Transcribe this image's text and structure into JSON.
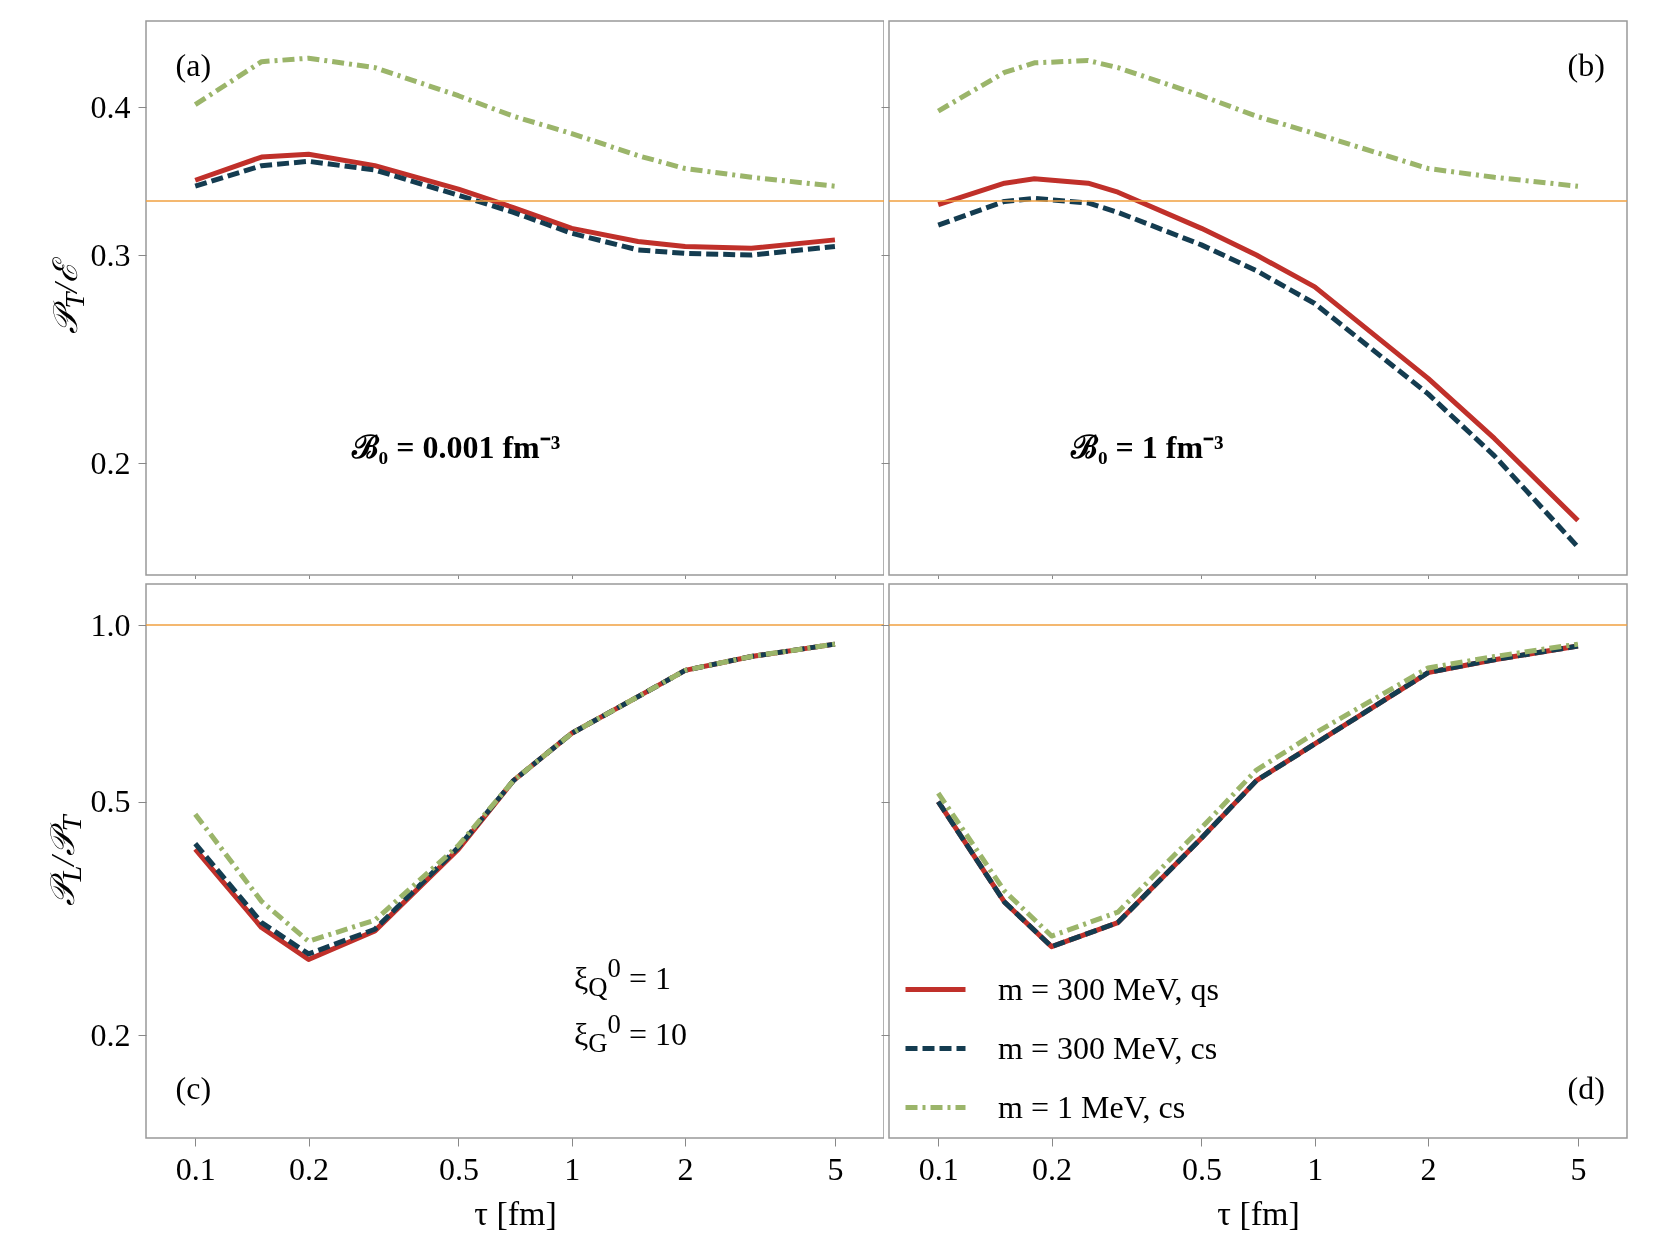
{
  "chart_data": [
    {
      "type": "line",
      "ylabel": "𝒫$_{T}$/ℰ",
      "annotations": [
        "(a)",
        "ℬ₀ = 0.001 fm⁻³"
      ],
      "log": "xy",
      "xlim": [
        0.074,
        6.75
      ],
      "xticks": [
        0.1,
        0.2,
        0.5,
        1,
        2,
        5
      ],
      "ylim": [
        0.161,
        0.473
      ],
      "yticks": [
        0.2,
        0.3,
        0.4
      ],
      "tick_labels": "y",
      "grid": false,
      "legend": false,
      "marker": "none",
      "ref_lines": [
        {
          "axis": "y",
          "value": 0.3333,
          "color": "#f0a040"
        }
      ],
      "x": [
        0.1,
        0.15,
        0.2,
        0.3,
        0.5,
        0.7,
        1,
        1.5,
        2,
        3,
        5
      ],
      "series": [
        {
          "color": "#c0302a",
          "line_style": "solid",
          "values": [
            0.347,
            0.363,
            0.365,
            0.357,
            0.341,
            0.329,
            0.316,
            0.308,
            0.305,
            0.304,
            0.309
          ]
        },
        {
          "color": "#143c50",
          "line_style": "dashed",
          "values": [
            0.343,
            0.357,
            0.36,
            0.354,
            0.337,
            0.326,
            0.313,
            0.303,
            0.301,
            0.3,
            0.305
          ]
        },
        {
          "color": "#9bb56a",
          "line_style": "dashdot",
          "values": [
            0.402,
            0.437,
            0.44,
            0.432,
            0.409,
            0.393,
            0.38,
            0.364,
            0.355,
            0.349,
            0.343
          ]
        }
      ]
    },
    {
      "type": "line",
      "annotations": [
        "(b)",
        "ℬ₀ = 1 fm⁻³"
      ],
      "log": "xy",
      "xlim": [
        0.074,
        6.75
      ],
      "xticks": [
        0.1,
        0.2,
        0.5,
        1,
        2,
        5
      ],
      "ylim": [
        0.161,
        0.473
      ],
      "yticks": [
        0.2,
        0.3,
        0.4
      ],
      "tick_labels": false,
      "grid": false,
      "legend": false,
      "marker": "none",
      "ref_lines": [
        {
          "axis": "y",
          "value": 0.3333,
          "color": "#f0a040"
        }
      ],
      "x": [
        0.1,
        0.15,
        0.18,
        0.25,
        0.3,
        0.5,
        0.7,
        1,
        2,
        3,
        5
      ],
      "series": [
        {
          "color": "#c0302a",
          "line_style": "solid",
          "values": [
            0.331,
            0.345,
            0.348,
            0.345,
            0.339,
            0.316,
            0.3,
            0.282,
            0.236,
            0.21,
            0.179
          ]
        },
        {
          "color": "#143c50",
          "line_style": "dashed",
          "values": [
            0.318,
            0.333,
            0.335,
            0.332,
            0.326,
            0.306,
            0.291,
            0.273,
            0.229,
            0.203,
            0.17
          ]
        },
        {
          "color": "#9bb56a",
          "line_style": "dashdot",
          "values": [
            0.397,
            0.428,
            0.436,
            0.438,
            0.432,
            0.409,
            0.393,
            0.38,
            0.355,
            0.349,
            0.343
          ]
        }
      ]
    },
    {
      "type": "line",
      "xlabel": "τ [fm]",
      "ylabel": "𝒫$_{L}$/𝒫$_{T}$",
      "annotations": [
        "ξ$_{Q}$$^{0}$ = 1",
        "ξ$_{G}$$^{0}$ = 10",
        "(c)"
      ],
      "log": "xy",
      "xlim": [
        0.074,
        6.75
      ],
      "xticks": [
        0.1,
        0.2,
        0.5,
        1,
        2,
        5
      ],
      "ylim": [
        0.1335,
        1.175
      ],
      "yticks": [
        0.2,
        0.5,
        {
          "value": 1,
          "label": "1.0"
        }
      ],
      "grid": false,
      "legend": false,
      "marker": "none",
      "ref_lines": [
        {
          "axis": "y",
          "value": 1,
          "color": "#f0a040"
        }
      ],
      "x": [
        0.1,
        0.15,
        0.2,
        0.3,
        0.5,
        0.7,
        1,
        1.5,
        2,
        3,
        5
      ],
      "series": [
        {
          "color": "#c0302a",
          "line_style": "solid",
          "values": [
            0.415,
            0.305,
            0.269,
            0.301,
            0.415,
            0.543,
            0.654,
            0.755,
            0.837,
            0.884,
            0.928
          ]
        },
        {
          "color": "#143c50",
          "line_style": "dashed",
          "values": [
            0.424,
            0.311,
            0.275,
            0.303,
            0.418,
            0.543,
            0.654,
            0.755,
            0.837,
            0.884,
            0.928
          ]
        },
        {
          "color": "#9bb56a",
          "line_style": "dashdot",
          "values": [
            0.476,
            0.338,
            0.289,
            0.314,
            0.421,
            0.543,
            0.654,
            0.755,
            0.837,
            0.884,
            0.928
          ]
        }
      ]
    },
    {
      "type": "line",
      "xlabel": "τ [fm]",
      "annotations": [
        "(d)"
      ],
      "log": "xy",
      "xlim": [
        0.074,
        6.75
      ],
      "xticks": [
        0.1,
        0.2,
        0.5,
        1,
        2,
        5
      ],
      "ylim": [
        0.1335,
        1.175
      ],
      "yticks": [
        0.2,
        0.5,
        1
      ],
      "tick_labels": "x",
      "grid": false,
      "legend": "bottom left",
      "marker": "none",
      "ref_lines": [
        {
          "axis": "y",
          "value": 1,
          "color": "#f0a040"
        }
      ],
      "x": [
        0.1,
        0.15,
        0.2,
        0.3,
        0.5,
        0.7,
        1,
        2,
        3,
        5
      ],
      "series": [
        {
          "name": "m = 300 MeV, qs",
          "color": "#c0302a",
          "line_style": "solid",
          "values": [
            0.5,
            0.337,
            0.283,
            0.311,
            0.433,
            0.543,
            0.627,
            0.83,
            0.873,
            0.921
          ]
        },
        {
          "name": "m = 300 MeV, cs",
          "color": "#143c50",
          "line_style": "dashed",
          "values": [
            0.5,
            0.337,
            0.283,
            0.311,
            0.433,
            0.543,
            0.627,
            0.83,
            0.873,
            0.921
          ]
        },
        {
          "name": "m = 1 MeV, cs",
          "color": "#9bb56a",
          "line_style": "dashdot",
          "values": [
            0.517,
            0.352,
            0.295,
            0.324,
            0.451,
            0.566,
            0.654,
            0.845,
            0.884,
            0.928
          ]
        }
      ]
    }
  ]
}
